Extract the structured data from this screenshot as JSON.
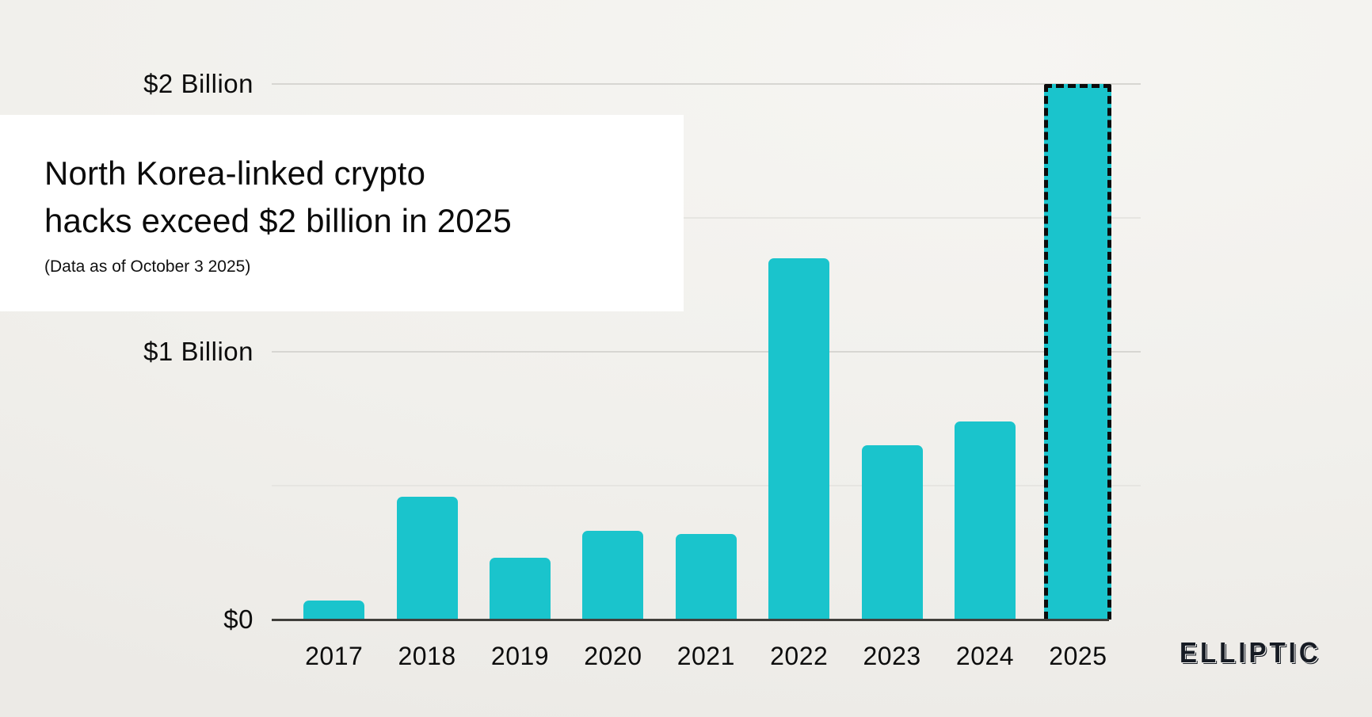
{
  "chart": {
    "title_line1": "North Korea-linked crypto",
    "title_line2": "hacks exceed $2 billion in 2025",
    "subtitle": "(Data as of October 3 2025)",
    "brand": "ELLIPTIC",
    "colors": {
      "bar": "#1ac4cc",
      "background": "#f1f0ec",
      "title_panel": "#ffffff",
      "axis": "#403f3b",
      "gridline_major": "#d7d6d2",
      "gridline_minor": "#e6e5e1",
      "highlight_dash": "#0b0b0b",
      "text": "#0d0d0d"
    }
  },
  "chart_data": {
    "type": "bar",
    "title": "North Korea-linked crypto hacks exceed $2 billion in 2025",
    "subtitle": "(Data as of October 3 2025)",
    "unit": "USD billions",
    "categories": [
      "2017",
      "2018",
      "2019",
      "2020",
      "2021",
      "2022",
      "2023",
      "2024",
      "2025"
    ],
    "values": [
      0.07,
      0.46,
      0.23,
      0.33,
      0.32,
      1.35,
      0.65,
      0.74,
      2.0
    ],
    "highlighted_category": "2025",
    "highlight_style": "black dashed outline",
    "yticks": [
      {
        "value": 0,
        "label": "$0"
      },
      {
        "value": 1,
        "label": "$1 Billion"
      },
      {
        "value": 2,
        "label": "$2 Billion"
      }
    ],
    "gridlines": [
      0.5,
      1,
      1.5,
      2
    ],
    "ylim": [
      0,
      2.05
    ],
    "xlabel": "",
    "ylabel": "",
    "legend": "none",
    "grid": "horizontal only"
  }
}
